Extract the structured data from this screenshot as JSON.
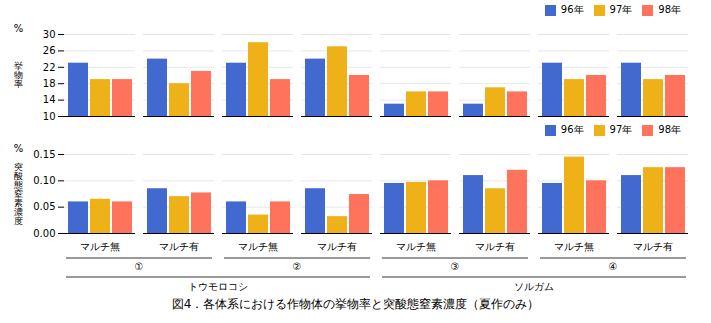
{
  "chart_data": [
    {
      "type": "bar",
      "ylabel": "挙\n物\n率",
      "annotations": [
        "%"
      ],
      "categories": [
        "マルチ無",
        "マルチ有",
        "マルチ無",
        "マルチ有",
        "マルチ無",
        "マルチ有",
        "マルチ無",
        "マルチ有"
      ],
      "series": [
        {
          "name": "96年",
          "values": [
            23,
            24,
            23,
            24,
            13,
            13,
            23,
            23
          ]
        },
        {
          "name": "97年",
          "values": [
            19,
            18,
            28,
            27,
            16,
            17,
            19,
            19
          ]
        },
        {
          "name": "98年",
          "values": [
            19,
            21,
            19,
            20,
            16,
            16,
            20,
            20
          ]
        }
      ],
      "ylim": [
        10,
        30
      ],
      "yticks": [
        10,
        14,
        18,
        22,
        26,
        30
      ],
      "grid": true,
      "legend": "upper right",
      "tick_labels": "y"
    },
    {
      "type": "bar",
      "ylabel": "突\n酸\n態\n窒\n素\n濃\n度",
      "annotations": [
        "%"
      ],
      "categories": [
        "マルチ無",
        "マルチ有",
        "マルチ無",
        "マルチ有",
        "マルチ無",
        "マルチ有",
        "マルチ無",
        "マルチ有"
      ],
      "series": [
        {
          "name": "96年",
          "values": [
            0.06,
            0.085,
            0.06,
            0.085,
            0.095,
            0.11,
            0.095,
            0.11
          ]
        },
        {
          "name": "97年",
          "values": [
            0.065,
            0.07,
            0.035,
            0.032,
            0.097,
            0.085,
            0.145,
            0.125
          ]
        },
        {
          "name": "98年",
          "values": [
            0.06,
            0.077,
            0.06,
            0.074,
            0.1,
            0.12,
            0.1,
            0.125
          ]
        }
      ],
      "ylim": [
        0.0,
        0.15
      ],
      "yticks": [
        {
          "value": 0,
          "label": "0.00"
        },
        0.05,
        {
          "value": 0.1,
          "label": "0.10"
        },
        0.15
      ],
      "grid": true,
      "legend": "upper right",
      "section_labels": [
        "①",
        "②",
        "③",
        "④"
      ],
      "crop_labels": [
        "トウモロコシ",
        "ソルガム"
      ],
      "caption": "図4．各体系における作物体の挙物率と突酸態窒素濃度（夏作のみ）"
    }
  ]
}
